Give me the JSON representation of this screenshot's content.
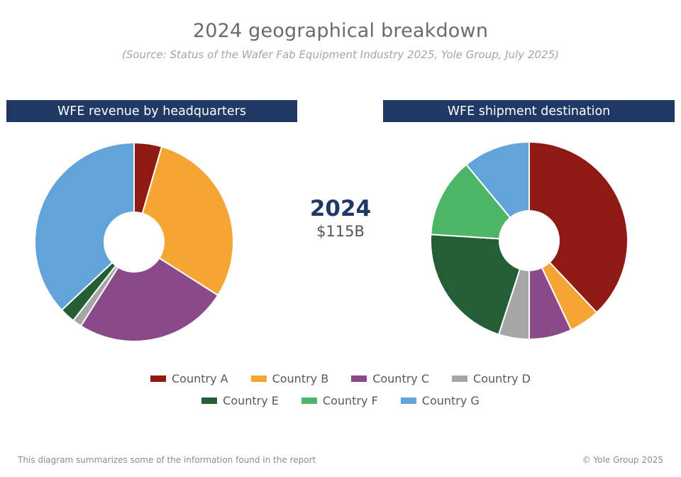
{
  "title": "2024 geographical breakdown",
  "subtitle": "(Source: Status of the Wafer Fab Equipment Industry 2025, Yole Group, July 2025)",
  "center": {
    "year": "2024",
    "value": "$115B"
  },
  "footer": {
    "left": "This diagram summarizes some of the information found in the report",
    "right": "© Yole Group 2025"
  },
  "legend": {
    "row1": [
      {
        "label": "Country A",
        "color": "#8f1a14"
      },
      {
        "label": "Country B",
        "color": "#f5a533"
      },
      {
        "label": "Country C",
        "color": "#8a4a8a"
      },
      {
        "label": "Country D",
        "color": "#a6a6a6"
      }
    ],
    "row2": [
      {
        "label": "Country E",
        "color": "#235e35"
      },
      {
        "label": "Country F",
        "color": "#4db566"
      },
      {
        "label": "Country G",
        "color": "#62a3d9"
      }
    ]
  },
  "chart_data": [
    {
      "type": "pie",
      "donut": true,
      "title": "WFE revenue by headquarters",
      "categories": [
        "Country A",
        "Country B",
        "Country C",
        "Country D",
        "Country E",
        "Country F",
        "Country G"
      ],
      "values": [
        4.5,
        29.5,
        25,
        1.5,
        2.5,
        0,
        37
      ],
      "colors": [
        "#8f1a14",
        "#f5a533",
        "#8a4a8a",
        "#a6a6a6",
        "#235e35",
        "#4db566",
        "#62a3d9"
      ]
    },
    {
      "type": "pie",
      "donut": true,
      "title": "WFE shipment destination",
      "categories": [
        "Country A",
        "Country B",
        "Country C",
        "Country D",
        "Country E",
        "Country F",
        "Country G"
      ],
      "values": [
        38,
        5,
        7,
        5,
        21,
        13,
        11
      ],
      "colors": [
        "#8f1a14",
        "#f5a533",
        "#8a4a8a",
        "#a6a6a6",
        "#235e35",
        "#4db566",
        "#62a3d9"
      ]
    }
  ]
}
